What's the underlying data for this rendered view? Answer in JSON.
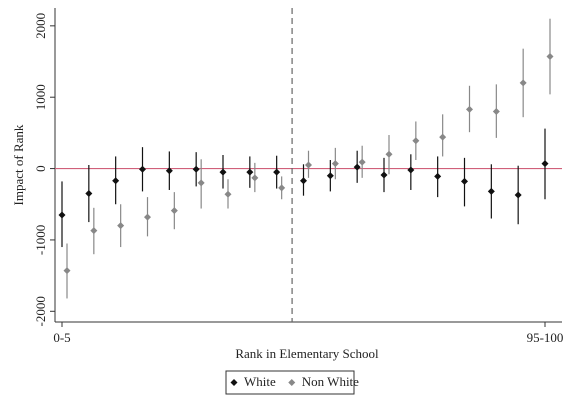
{
  "chart_data": {
    "type": "errorbar",
    "y_label": "Impact of Rank",
    "x_label": "Rank in Elementary School",
    "categories": [
      "0-5",
      null,
      null,
      null,
      null,
      null,
      null,
      null,
      null,
      null,
      null,
      null,
      null,
      null,
      null,
      null,
      null,
      null,
      "95-100"
    ],
    "cutoff_after": 8,
    "ylim": [
      -2150,
      2250
    ],
    "yticks": [
      -2000,
      -1000,
      0,
      1000,
      2000
    ],
    "reference_line": 0,
    "series": [
      {
        "name": "White",
        "color": "#111111",
        "values": [
          -650,
          -350,
          -170,
          -10,
          -30,
          -10,
          -50,
          -50,
          -50,
          -170,
          -100,
          20,
          -90,
          -20,
          -110,
          -180,
          -320,
          -370,
          70
        ],
        "lower": [
          -1100,
          -750,
          -500,
          -320,
          -300,
          -250,
          -280,
          -270,
          -280,
          -380,
          -320,
          -200,
          -330,
          -300,
          -400,
          -530,
          -700,
          -780,
          -430
        ],
        "upper": [
          -180,
          50,
          170,
          300,
          240,
          230,
          190,
          170,
          180,
          60,
          120,
          250,
          150,
          200,
          170,
          150,
          60,
          40,
          560
        ]
      },
      {
        "name": "Non White",
        "color": "#888888",
        "values": [
          -1430,
          -870,
          -800,
          -680,
          -590,
          -200,
          -360,
          -130,
          -270,
          50,
          70,
          90,
          200,
          390,
          440,
          830,
          800,
          1200,
          1570
        ],
        "lower": [
          -1820,
          -1200,
          -1100,
          -950,
          -850,
          -560,
          -560,
          -330,
          -430,
          -130,
          -150,
          -130,
          -80,
          120,
          170,
          510,
          430,
          720,
          1040
        ],
        "upper": [
          -1050,
          -550,
          -500,
          -400,
          -330,
          130,
          -150,
          80,
          -110,
          250,
          290,
          320,
          470,
          660,
          760,
          1160,
          1180,
          1680,
          2100
        ]
      }
    ]
  }
}
